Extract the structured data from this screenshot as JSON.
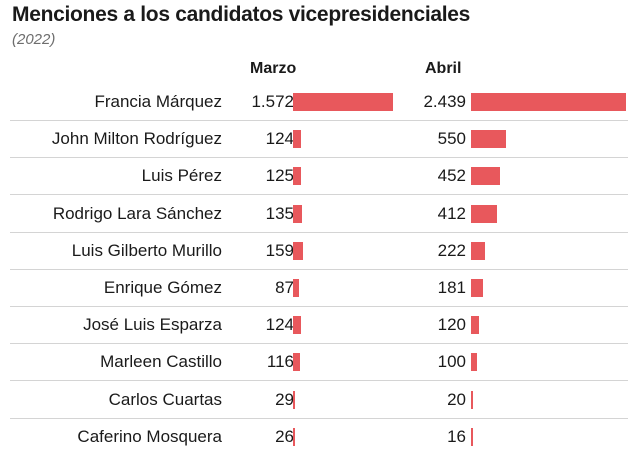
{
  "title": "Menciones a los candidatos vicepresidenciales",
  "subtitle": "(2022)",
  "columns": {
    "march": "Marzo",
    "april": "Abril"
  },
  "colors": {
    "bar": "#e8585c"
  },
  "chart_data": {
    "type": "bar",
    "orientation": "horizontal",
    "categories": [
      "Francia Márquez",
      "John Milton Rodríguez",
      "Luis Pérez",
      "Rodrigo Lara Sánchez",
      "Luis Gilberto Murillo",
      "Enrique Gómez",
      "José Luis Esparza",
      "Marleen Castillo",
      "Carlos Cuartas",
      "Caferino Mosquera"
    ],
    "series": [
      {
        "name": "Marzo",
        "values": [
          1572,
          124,
          125,
          135,
          159,
          87,
          124,
          116,
          29,
          26
        ],
        "labels": [
          "1.572",
          "124",
          "125",
          "135",
          "159",
          "87",
          "124",
          "116",
          "29",
          "26"
        ]
      },
      {
        "name": "Abril",
        "values": [
          2439,
          550,
          452,
          412,
          222,
          181,
          120,
          100,
          20,
          16
        ],
        "labels": [
          "2.439",
          "550",
          "452",
          "412",
          "222",
          "181",
          "120",
          "100",
          "20",
          "16"
        ]
      }
    ],
    "xlim": [
      0,
      2439
    ],
    "grid": false,
    "legend": "none"
  }
}
